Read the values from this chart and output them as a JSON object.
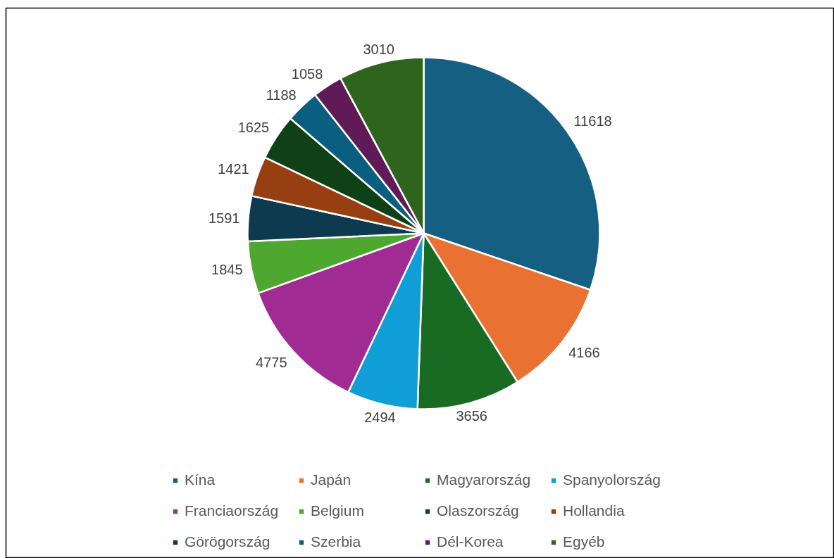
{
  "chart_data": {
    "type": "pie",
    "categories": [
      "Kína",
      "Japán",
      "Magyarország",
      "Spanyolország",
      "Franciaország",
      "Belgium",
      "Olaszország",
      "Hollandia",
      "Görögország",
      "Szerbia",
      "Dél-Korea",
      "Egyéb"
    ],
    "values": [
      11618,
      4166,
      3656,
      2494,
      4775,
      1845,
      1591,
      1421,
      1625,
      1188,
      1058,
      3010
    ],
    "colors": [
      "#156082",
      "#e97132",
      "#196b24",
      "#0f9ed5",
      "#a02b93",
      "#4ea72e",
      "#0d3a4e",
      "#983f12",
      "#0f4016",
      "#0a5f80",
      "#601a58",
      "#2f641c"
    ],
    "data_labels": true,
    "legend": "bottom"
  }
}
